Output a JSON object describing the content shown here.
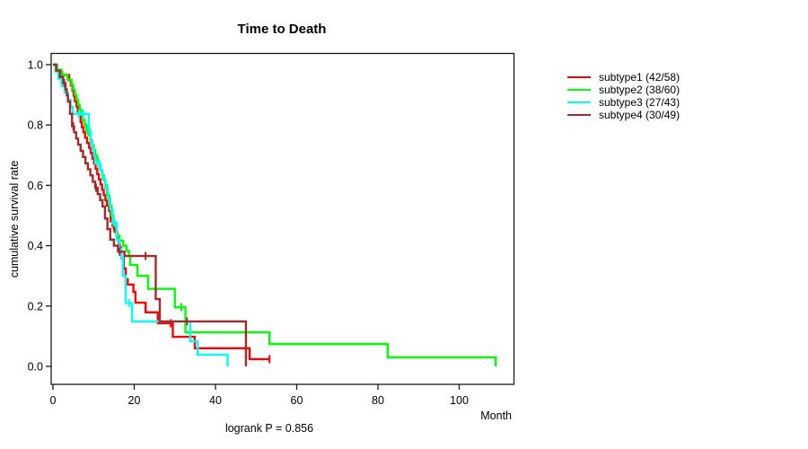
{
  "figure": {
    "background": "#ffffff"
  },
  "chart_data": {
    "type": "line",
    "subtype": "kaplan-meier-step-curves",
    "title": "Time to Death",
    "xlabel": "Month",
    "ylabel": "cumulative survival rate",
    "footnote": "logrank P = 0.856",
    "xlim": [
      0,
      113
    ],
    "ylim": [
      0,
      1
    ],
    "x_ticks": [
      0,
      20,
      40,
      60,
      80,
      100
    ],
    "y_ticks": [
      0.0,
      0.2,
      0.4,
      0.6,
      0.8,
      1.0
    ],
    "y_tick_labels": [
      "0.0",
      "0.2",
      "0.4",
      "0.6",
      "0.8",
      "1.0"
    ],
    "grid": false,
    "legend_position": "right-outside",
    "axis_color": "#1a1a1a",
    "series": [
      {
        "name": "subtype1 (42/58)",
        "color": "#ff0000",
        "end_month": 53.5,
        "steps": [
          [
            0,
            1.0
          ],
          [
            0.7,
            0.983
          ],
          [
            1.6,
            0.966
          ],
          [
            4.0,
            0.948
          ],
          [
            4.4,
            0.931
          ],
          [
            4.8,
            0.914
          ],
          [
            5.1,
            0.897
          ],
          [
            5.4,
            0.879
          ],
          [
            5.8,
            0.862
          ],
          [
            6.1,
            0.845
          ],
          [
            6.4,
            0.827
          ],
          [
            6.8,
            0.81
          ],
          [
            7.1,
            0.793
          ],
          [
            7.5,
            0.776
          ],
          [
            7.9,
            0.758
          ],
          [
            8.4,
            0.741
          ],
          [
            8.9,
            0.724
          ],
          [
            9.3,
            0.707
          ],
          [
            9.7,
            0.689
          ],
          [
            10.1,
            0.672
          ],
          [
            10.5,
            0.655
          ],
          [
            10.9,
            0.637
          ],
          [
            11.3,
            0.62
          ],
          [
            11.7,
            0.603
          ],
          [
            12.1,
            0.585
          ],
          [
            12.5,
            0.568
          ],
          [
            12.9,
            0.551
          ],
          [
            13.3,
            0.533
          ],
          [
            13.8,
            0.516
          ],
          [
            14.2,
            0.481
          ],
          [
            14.7,
            0.464
          ],
          [
            15.2,
            0.446
          ],
          [
            15.8,
            0.429
          ],
          [
            16.2,
            0.394
          ],
          [
            16.8,
            0.359
          ],
          [
            17.4,
            0.324
          ],
          [
            17.9,
            0.289
          ],
          [
            18.4,
            0.271
          ],
          [
            19.8,
            0.247
          ],
          [
            20.3,
            0.211
          ],
          [
            22.8,
            0.179
          ],
          [
            25.8,
            0.143
          ],
          [
            29.5,
            0.098
          ],
          [
            34.9,
            0.06
          ],
          [
            48.4,
            0.024
          ]
        ],
        "censors": [
          [
            2.3,
            0.966
          ],
          [
            15.0,
            0.464
          ],
          [
            16.5,
            0.394
          ],
          [
            29.0,
            0.143
          ],
          [
            53.3,
            0.024
          ]
        ]
      },
      {
        "name": "subtype2 (38/60)",
        "color": "#00ff00",
        "end_month": 109.0,
        "steps": [
          [
            0,
            1.0
          ],
          [
            1.0,
            0.983
          ],
          [
            2.1,
            0.967
          ],
          [
            3.6,
            0.95
          ],
          [
            4.6,
            0.933
          ],
          [
            5.0,
            0.917
          ],
          [
            5.4,
            0.9
          ],
          [
            5.8,
            0.883
          ],
          [
            6.2,
            0.867
          ],
          [
            6.6,
            0.85
          ],
          [
            7.0,
            0.833
          ],
          [
            7.4,
            0.817
          ],
          [
            7.8,
            0.8
          ],
          [
            8.2,
            0.783
          ],
          [
            8.7,
            0.767
          ],
          [
            9.2,
            0.75
          ],
          [
            9.6,
            0.733
          ],
          [
            10.0,
            0.717
          ],
          [
            10.4,
            0.7
          ],
          [
            10.8,
            0.683
          ],
          [
            11.3,
            0.667
          ],
          [
            11.7,
            0.65
          ],
          [
            12.1,
            0.633
          ],
          [
            12.5,
            0.617
          ],
          [
            12.9,
            0.6
          ],
          [
            13.3,
            0.567
          ],
          [
            13.9,
            0.533
          ],
          [
            14.4,
            0.5
          ],
          [
            14.9,
            0.467
          ],
          [
            15.6,
            0.433
          ],
          [
            16.4,
            0.417
          ],
          [
            17.3,
            0.4
          ],
          [
            18.1,
            0.383
          ],
          [
            18.7,
            0.366
          ],
          [
            19.0,
            0.336
          ],
          [
            20.8,
            0.3
          ],
          [
            23.4,
            0.257
          ],
          [
            30.0,
            0.196
          ],
          [
            32.6,
            0.113
          ],
          [
            53.3,
            0.074
          ],
          [
            82.4,
            0.03
          ],
          [
            109.0,
            0.0
          ]
        ],
        "censors": [
          [
            8.5,
            0.783
          ],
          [
            11.0,
            0.683
          ],
          [
            13.6,
            0.567
          ],
          [
            31.6,
            0.196
          ]
        ]
      },
      {
        "name": "subtype3 (27/43)",
        "color": "#00ffff",
        "end_month": 43.0,
        "steps": [
          [
            0,
            1.0
          ],
          [
            0.6,
            0.977
          ],
          [
            1.3,
            0.953
          ],
          [
            2.1,
            0.93
          ],
          [
            2.9,
            0.907
          ],
          [
            3.7,
            0.884
          ],
          [
            4.3,
            0.86
          ],
          [
            4.9,
            0.837
          ],
          [
            8.8,
            0.783
          ],
          [
            9.3,
            0.744
          ],
          [
            9.7,
            0.72
          ],
          [
            10.1,
            0.697
          ],
          [
            10.4,
            0.673
          ],
          [
            11.6,
            0.65
          ],
          [
            12.2,
            0.62
          ],
          [
            12.9,
            0.59
          ],
          [
            13.5,
            0.555
          ],
          [
            14.1,
            0.52
          ],
          [
            14.7,
            0.476
          ],
          [
            15.7,
            0.42
          ],
          [
            16.3,
            0.39
          ],
          [
            16.8,
            0.36
          ],
          [
            17.2,
            0.3
          ],
          [
            17.9,
            0.21
          ],
          [
            19.5,
            0.149
          ],
          [
            33.8,
            0.083
          ],
          [
            35.6,
            0.039
          ],
          [
            43.0,
            0.0
          ]
        ],
        "censors": [
          [
            6.4,
            0.837
          ],
          [
            7.5,
            0.837
          ],
          [
            9.0,
            0.783
          ],
          [
            11.2,
            0.673
          ],
          [
            15.2,
            0.476
          ],
          [
            18.8,
            0.21
          ]
        ]
      },
      {
        "name": "subtype4 (30/49)",
        "color": "#a52a2a",
        "end_month": 47.5,
        "steps": [
          [
            0,
            1.0
          ],
          [
            0.8,
            0.98
          ],
          [
            1.7,
            0.959
          ],
          [
            2.5,
            0.939
          ],
          [
            3.1,
            0.918
          ],
          [
            3.4,
            0.898
          ],
          [
            3.7,
            0.878
          ],
          [
            4.2,
            0.837
          ],
          [
            4.7,
            0.796
          ],
          [
            5.2,
            0.776
          ],
          [
            5.7,
            0.755
          ],
          [
            6.2,
            0.735
          ],
          [
            6.8,
            0.714
          ],
          [
            7.4,
            0.694
          ],
          [
            8.0,
            0.673
          ],
          [
            8.6,
            0.653
          ],
          [
            9.2,
            0.633
          ],
          [
            9.8,
            0.612
          ],
          [
            10.4,
            0.592
          ],
          [
            11.0,
            0.571
          ],
          [
            11.6,
            0.551
          ],
          [
            12.2,
            0.53
          ],
          [
            12.8,
            0.49
          ],
          [
            13.4,
            0.455
          ],
          [
            14.1,
            0.42
          ],
          [
            15.0,
            0.4
          ],
          [
            16.0,
            0.38
          ],
          [
            17.6,
            0.366
          ],
          [
            25.3,
            0.223
          ],
          [
            26.3,
            0.149
          ],
          [
            47.5,
            0.0
          ]
        ],
        "censors": [
          [
            2.8,
            0.939
          ],
          [
            5.0,
            0.796
          ],
          [
            10.6,
            0.592
          ],
          [
            16.4,
            0.38
          ],
          [
            22.8,
            0.366
          ],
          [
            33.0,
            0.149
          ]
        ]
      }
    ]
  }
}
